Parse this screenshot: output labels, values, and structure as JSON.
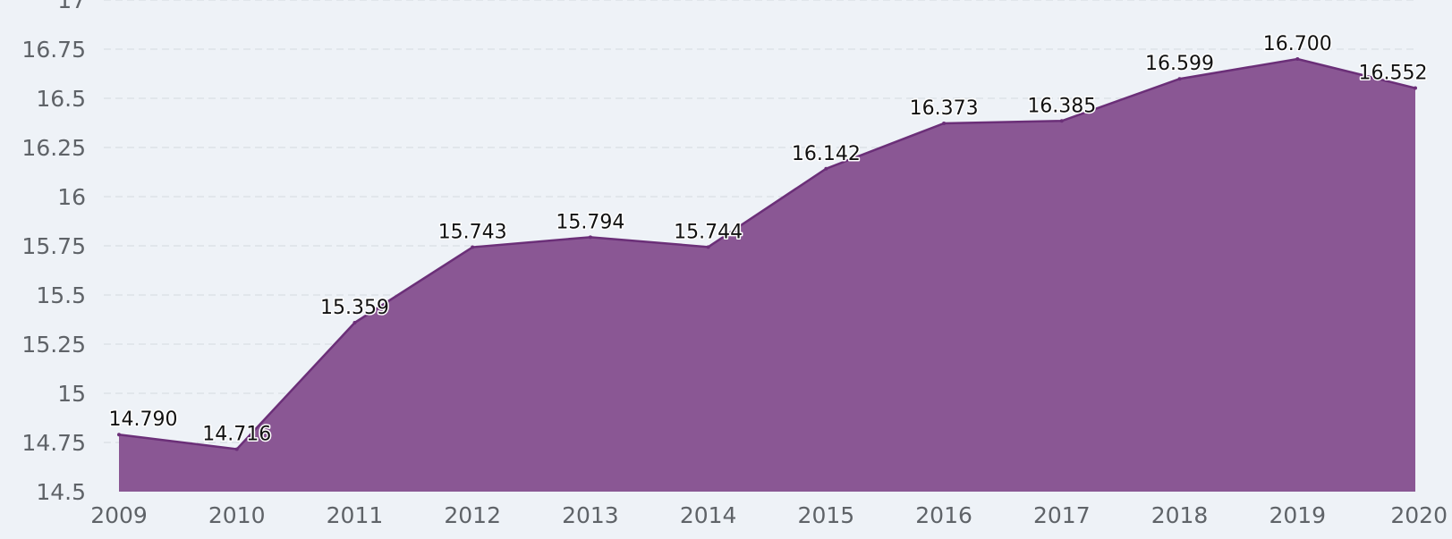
{
  "chart_data": {
    "type": "area",
    "title": "",
    "xlabel": "",
    "ylabel": "",
    "x": [
      "2009",
      "2010",
      "2011",
      "2012",
      "2013",
      "2014",
      "2015",
      "2016",
      "2017",
      "2018",
      "2019",
      "2020"
    ],
    "values": [
      14.79,
      14.716,
      15.359,
      15.743,
      15.794,
      15.744,
      16.142,
      16.373,
      16.385,
      16.599,
      16.7,
      16.552
    ],
    "data_labels": [
      "14.790",
      "14.716",
      "15.359",
      "15.743",
      "15.794",
      "15.744",
      "16.142",
      "16.373",
      "16.385",
      "16.599",
      "16.700",
      "16.552"
    ],
    "y_ticks": [
      "14.5",
      "14.75",
      "15",
      "15.25",
      "15.5",
      "15.75",
      "16",
      "16.25",
      "16.5",
      "16.75",
      "17"
    ],
    "ylim": [
      14.5,
      17
    ],
    "grid": true,
    "legend": "none",
    "colors": {
      "area": "#8a5794",
      "line": "#6b2f78",
      "background": "#eef2f7"
    }
  }
}
